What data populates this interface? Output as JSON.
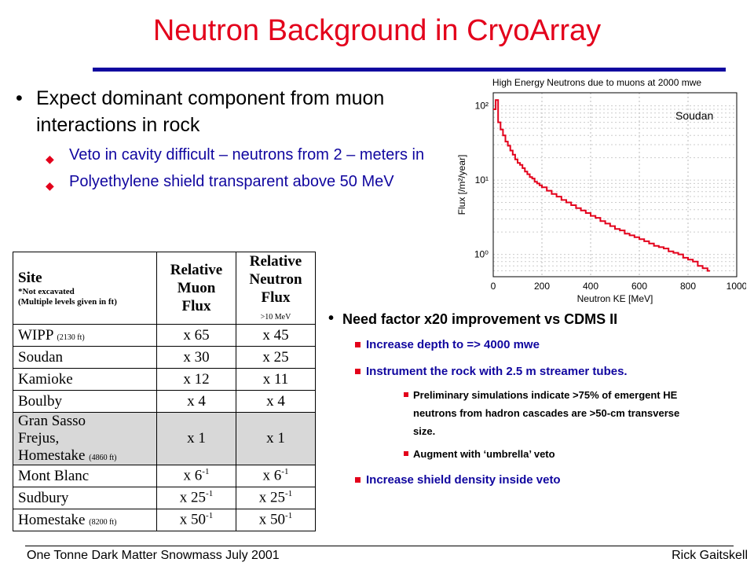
{
  "slide": {
    "title": "Neutron Background in CryoArray",
    "bullets": {
      "main": "Expect dominant component from muon interactions in rock",
      "sub": [
        "Veto in cavity difficult – neutrons from 2 – meters in",
        "Polyethylene shield transparent above 50 MeV"
      ]
    },
    "right_list": {
      "main": "Need factor x20 improvement vs CDMS II",
      "items": [
        "Increase depth to => 4000 mwe",
        "Instrument the rock with 2.5 m streamer tubes.",
        "Preliminary simulations indicate >75% of emergent HE neutrons from hadron cascades are >50-cm transverse size.",
        "Augment with ‘umbrella’ veto",
        "Increase shield density inside veto"
      ]
    },
    "footer": {
      "left": "One Tonne Dark Matter Snowmass July 2001",
      "right": "Rick Gaitskell"
    }
  },
  "table": {
    "headers": {
      "site": "Site",
      "site_note1": "*Not excavated",
      "site_note2": "(Multiple levels given in ft)",
      "muon": "Relative Muon Flux",
      "neutron": "Relative Neutron Flux",
      "neutron_note": ">10 MeV"
    },
    "rows": [
      {
        "site": "WIPP",
        "depth": "(2130 ft)",
        "muon": "x 65",
        "neutron": "x 45",
        "shaded": false
      },
      {
        "site": "Soudan",
        "depth": "",
        "muon": "x 30",
        "neutron": "x 25",
        "shaded": false
      },
      {
        "site": "Kamioke",
        "depth": "",
        "muon": "x 12",
        "neutron": "x 11",
        "shaded": false
      },
      {
        "site": "Boulby",
        "depth": "",
        "muon": "x 4",
        "neutron": "x 4",
        "shaded": false
      },
      {
        "site": "Gran Sasso",
        "site2": "Frejus,",
        "site3": "Homestake",
        "depth": "(4860 ft)",
        "muon": "x 1",
        "neutron": "x 1",
        "shaded": true
      },
      {
        "site": "Mont Blanc",
        "depth": "",
        "muon": "x 6",
        "neutron": "x 6",
        "muon_exp": "-1",
        "neutron_exp": "-1",
        "shaded": false
      },
      {
        "site": "Sudbury",
        "depth": "",
        "muon": "x 25",
        "neutron": "x 25",
        "muon_exp": "-1",
        "neutron_exp": "-1",
        "shaded": false
      },
      {
        "site": "Homestake",
        "depth": "(8200 ft)",
        "muon": "x 50",
        "neutron": "x 50",
        "muon_exp": "-1",
        "neutron_exp": "-1",
        "shaded": false
      }
    ]
  },
  "chart_data": {
    "type": "line",
    "title": "High Energy Neutrons due to muons at 2000 mwe",
    "annotation": "Soudan",
    "xlabel": "Neutron KE [MeV]",
    "ylabel": "Flux [/m²/year]",
    "xlim": [
      0,
      1000
    ],
    "ylim": [
      0.5,
      150
    ],
    "yscale": "log",
    "xticks": [
      0,
      200,
      400,
      600,
      800,
      1000
    ],
    "yticks": [
      1,
      10,
      100
    ],
    "ytick_labels": [
      "10⁰",
      "10¹",
      "10²"
    ],
    "grid": true,
    "color": "#e3001b",
    "series": [
      {
        "x": [
          0,
          10,
          20,
          30,
          40,
          50,
          60,
          70,
          80,
          90,
          100,
          110,
          120,
          130,
          140,
          150,
          160,
          170,
          180,
          190,
          200,
          220,
          240,
          260,
          280,
          300,
          320,
          340,
          360,
          380,
          400,
          420,
          440,
          460,
          480,
          500,
          520,
          540,
          560,
          580,
          600,
          620,
          640,
          660,
          680,
          700,
          720,
          740,
          760,
          780,
          800,
          820,
          840,
          860,
          880
        ],
        "values": [
          90,
          120,
          60,
          48,
          40,
          33,
          29,
          25,
          22,
          19,
          17,
          16,
          14.5,
          13,
          12,
          11,
          10.5,
          9.5,
          9,
          8.5,
          8,
          7.2,
          6.5,
          6,
          5.4,
          5,
          4.6,
          4.2,
          3.9,
          3.6,
          3.3,
          3.1,
          2.8,
          2.6,
          2.4,
          2.2,
          2.1,
          1.9,
          1.8,
          1.7,
          1.6,
          1.5,
          1.4,
          1.3,
          1.25,
          1.2,
          1.1,
          1.05,
          1,
          0.9,
          0.85,
          0.8,
          0.7,
          0.65,
          0.6
        ]
      }
    ]
  }
}
